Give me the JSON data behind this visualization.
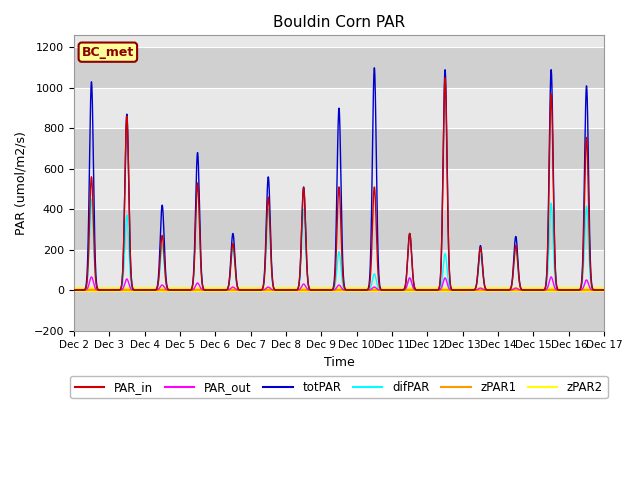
{
  "title": "Bouldin Corn PAR",
  "ylabel": "PAR (umol/m2/s)",
  "xlabel": "Time",
  "ylim": [
    -200,
    1260
  ],
  "yticks": [
    -200,
    0,
    200,
    400,
    600,
    800,
    1000,
    1200
  ],
  "xtick_labels": [
    "Dec 2",
    "Dec 3",
    "Dec 4",
    "Dec 5",
    "Dec 6",
    "Dec 7",
    "Dec 8",
    "Dec 9",
    "Dec 10",
    "Dec 11",
    "Dec 12",
    "Dec 13",
    "Dec 14",
    "Dec 15",
    "Dec 16",
    "Dec 17"
  ],
  "colors": {
    "PAR_in": "#cc0000",
    "PAR_out": "#ff00ff",
    "totPAR": "#0000cc",
    "difPAR": "#00ffff",
    "zPAR1": "#ff9900",
    "zPAR2": "#ffff00"
  },
  "legend_label": "BC_met",
  "legend_facecolor": "#ffff99",
  "legend_edgecolor": "#8b0000",
  "axes_facecolor": "#e8e8e8",
  "fig_facecolor": "#ffffff",
  "grid_color": "#ffffff",
  "band_colors": [
    "#d8d8d8",
    "#e8e8e8"
  ],
  "day_peaks": [
    {
      "totPAR": 1030,
      "PAR_in": 560,
      "PAR_out": 65,
      "difPAR": 450
    },
    {
      "totPAR": 870,
      "PAR_in": 860,
      "PAR_out": 55,
      "difPAR": 370
    },
    {
      "totPAR": 420,
      "PAR_in": 270,
      "PAR_out": 25,
      "difPAR": 220
    },
    {
      "totPAR": 680,
      "PAR_in": 530,
      "PAR_out": 35,
      "difPAR": 530
    },
    {
      "totPAR": 280,
      "PAR_in": 230,
      "PAR_out": 15,
      "difPAR": 210
    },
    {
      "totPAR": 560,
      "PAR_in": 460,
      "PAR_out": 15,
      "difPAR": 400
    },
    {
      "totPAR": 510,
      "PAR_in": 505,
      "PAR_out": 30,
      "difPAR": 400
    },
    {
      "totPAR": 900,
      "PAR_in": 510,
      "PAR_out": 25,
      "difPAR": 190
    },
    {
      "totPAR": 1100,
      "PAR_in": 510,
      "PAR_out": 15,
      "difPAR": 80
    },
    {
      "totPAR": 280,
      "PAR_in": 280,
      "PAR_out": 60,
      "difPAR": 60
    },
    {
      "totPAR": 1090,
      "PAR_in": 1050,
      "PAR_out": 60,
      "difPAR": 180
    },
    {
      "totPAR": 220,
      "PAR_in": 210,
      "PAR_out": 10,
      "difPAR": 175
    },
    {
      "totPAR": 265,
      "PAR_in": 220,
      "PAR_out": 10,
      "difPAR": 200
    },
    {
      "totPAR": 1090,
      "PAR_in": 970,
      "PAR_out": 65,
      "difPAR": 430
    },
    {
      "totPAR": 1010,
      "PAR_in": 755,
      "PAR_out": 50,
      "difPAR": 415
    }
  ]
}
